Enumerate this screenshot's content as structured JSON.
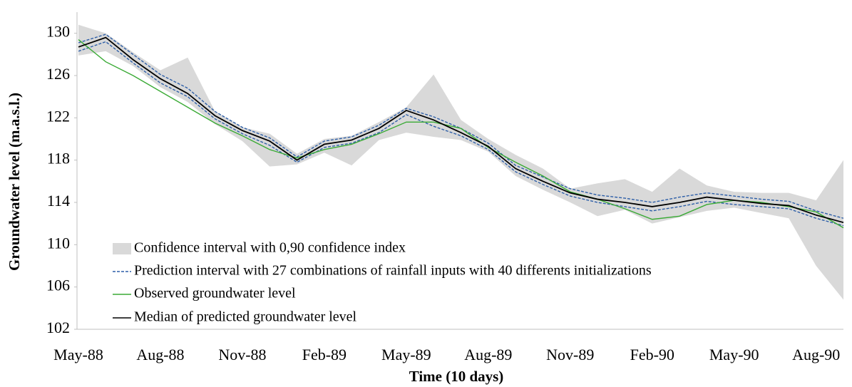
{
  "chart_data": {
    "type": "line",
    "ylabel": "Groundwater level (m.a.s.l.)",
    "xlabel": "Time (10 days)",
    "categories": [
      "May-88",
      null,
      null,
      "Aug-88",
      null,
      null,
      "Nov-88",
      null,
      null,
      "Feb-89",
      null,
      null,
      "May-89",
      null,
      null,
      "Aug-89",
      null,
      null,
      "Nov-89",
      null,
      null,
      "Feb-90",
      null,
      null,
      "May-90",
      null,
      null,
      "Aug-90",
      null
    ],
    "ylim": [
      102,
      132
    ],
    "yticks": [
      102,
      106,
      110,
      114,
      118,
      122,
      126,
      130
    ],
    "grid": false,
    "band": {
      "name": "Confidence interval with 0,90 confidence index",
      "color": "#d9d9d9",
      "upper": [
        130.8,
        130.0,
        128.2,
        126.5,
        127.7,
        122.6,
        121.1,
        120.5,
        118.6,
        120.0,
        120.3,
        121.6,
        123.0,
        126.1,
        121.8,
        120.0,
        118.5,
        117.2,
        115.3,
        115.8,
        116.2,
        115.0,
        117.2,
        115.6,
        115.0,
        114.9,
        114.9,
        114.2,
        118.0
      ],
      "lower": [
        127.9,
        128.3,
        126.9,
        124.9,
        123.5,
        121.4,
        119.8,
        117.4,
        117.6,
        118.7,
        117.5,
        119.9,
        120.6,
        120.2,
        119.9,
        118.8,
        116.5,
        115.2,
        114.0,
        112.7,
        113.3,
        112.0,
        112.6,
        113.2,
        113.5,
        113.0,
        112.5,
        108.0,
        104.8
      ]
    },
    "prediction": {
      "name": "Prediction interval with 27 combinations of rainfall inputs with 40 differents initializations",
      "color": "#2e5fa8",
      "upper": [
        129.1,
        129.9,
        128.0,
        126.1,
        124.8,
        122.6,
        121.1,
        120.1,
        118.3,
        119.8,
        120.2,
        121.3,
        122.9,
        122.1,
        121.0,
        119.6,
        117.5,
        116.4,
        115.3,
        114.7,
        114.4,
        114.0,
        114.5,
        114.9,
        114.6,
        114.3,
        114.1,
        113.2,
        112.5
      ],
      "lower": [
        128.3,
        129.2,
        127.2,
        125.3,
        124.0,
        121.9,
        120.5,
        119.4,
        117.8,
        119.2,
        119.6,
        120.6,
        122.3,
        121.2,
        120.3,
        119.0,
        116.9,
        115.7,
        114.6,
        114.0,
        113.6,
        113.2,
        113.6,
        114.1,
        113.8,
        113.6,
        113.4,
        112.5,
        111.8
      ]
    },
    "series": [
      {
        "name": "Observed groundwater level",
        "color": "#3aaa35",
        "values": [
          129.4,
          127.3,
          126.0,
          124.5,
          123.0,
          121.5,
          120.3,
          119.0,
          118.2,
          119.0,
          119.5,
          120.5,
          121.6,
          121.6,
          121.0,
          119.2,
          117.8,
          116.5,
          115.0,
          114.3,
          113.4,
          112.4,
          112.7,
          113.8,
          114.2,
          114.0,
          113.6,
          113.1,
          111.6
        ]
      },
      {
        "name": "Median of predicted groundwater level",
        "color": "#000000",
        "values": [
          128.7,
          129.6,
          127.5,
          125.7,
          124.3,
          122.2,
          120.8,
          119.8,
          118.0,
          119.5,
          119.9,
          121.0,
          122.7,
          121.8,
          120.6,
          119.3,
          117.2,
          116.0,
          114.9,
          114.3,
          114.0,
          113.6,
          114.0,
          114.5,
          114.2,
          113.9,
          113.7,
          112.8,
          112.1
        ]
      }
    ]
  }
}
